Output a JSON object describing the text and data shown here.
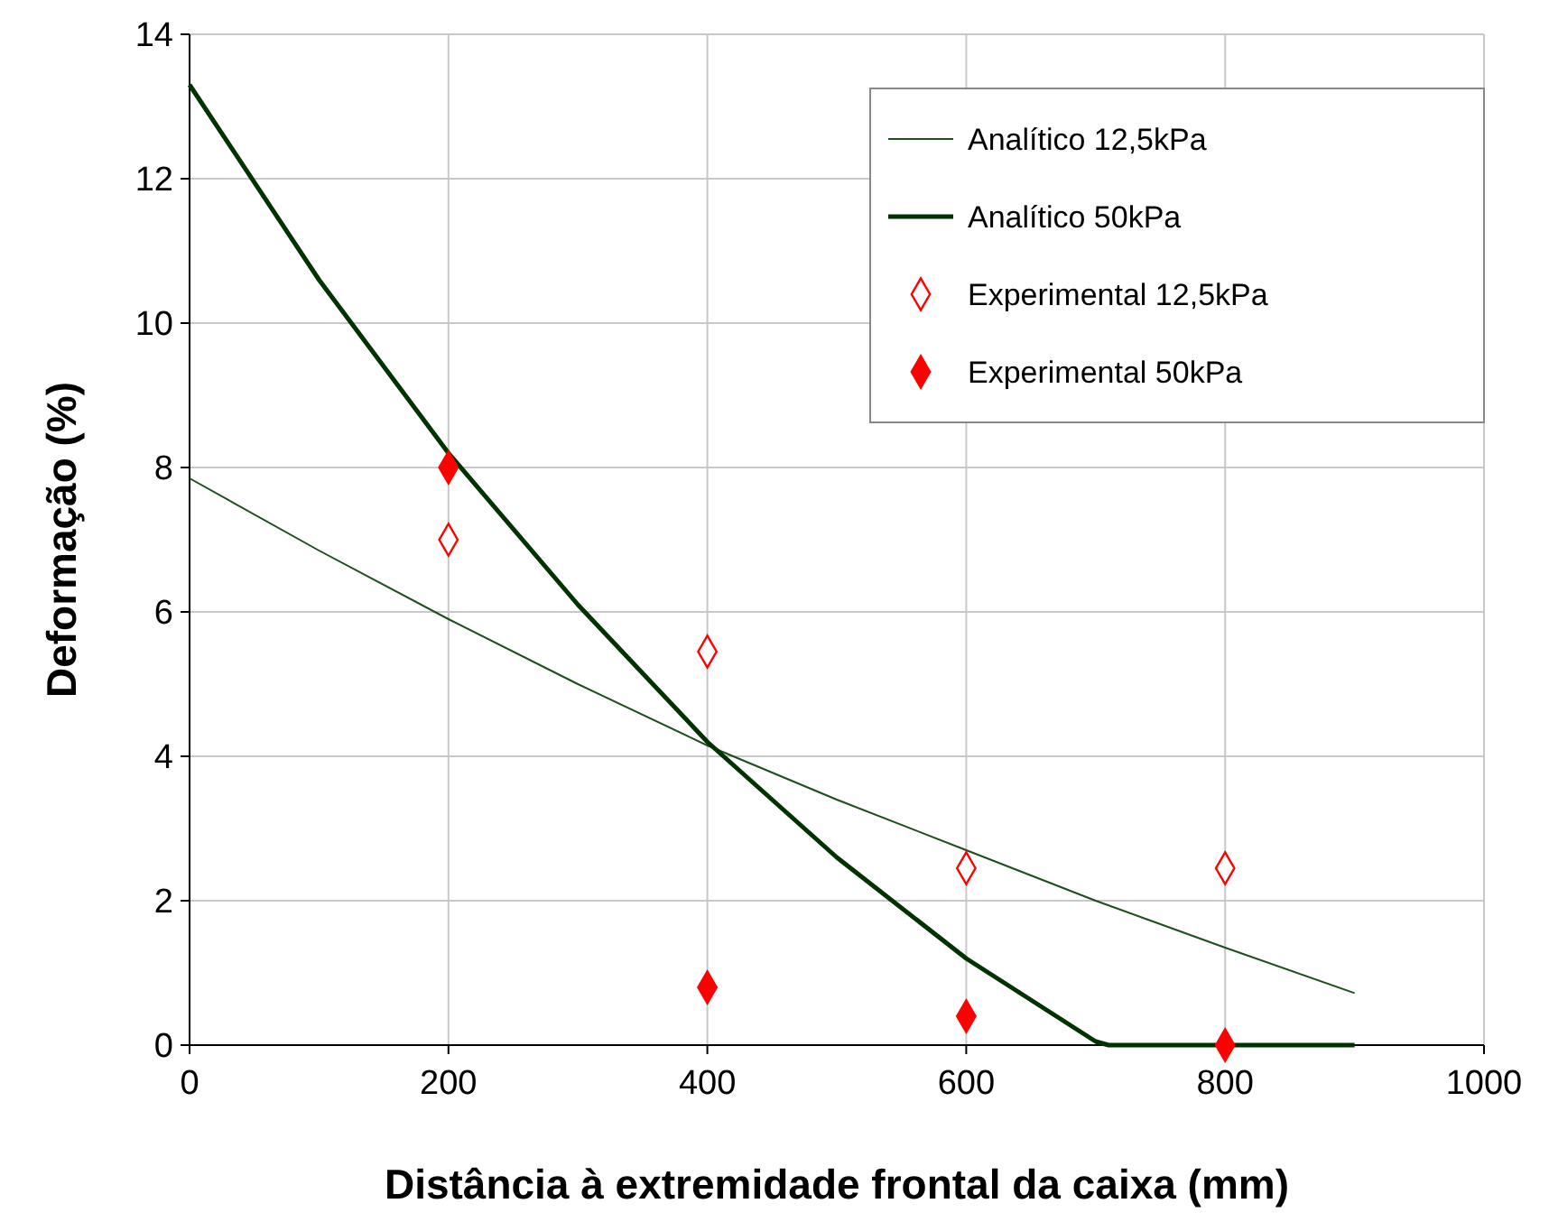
{
  "chart_data": {
    "type": "line",
    "xlabel": "Distância à extremidade frontal da caixa (mm)",
    "ylabel": "Deformação (%)",
    "xlim": [
      0,
      1000
    ],
    "xticks": [
      0,
      200,
      400,
      600,
      800,
      1000
    ],
    "ylim": [
      0,
      14
    ],
    "yticks": [
      0,
      2,
      4,
      6,
      8,
      10,
      12,
      14
    ],
    "grid": true,
    "legend": "top right",
    "series": [
      {
        "name": "Analítico 12,5kPa",
        "color": "#1e4d1e",
        "x": [
          0,
          100,
          200,
          300,
          400,
          500,
          600,
          700,
          800,
          900
        ],
        "values": [
          7.85,
          6.85,
          5.9,
          5.0,
          4.15,
          3.4,
          2.7,
          2.0,
          1.35,
          0.72
        ]
      },
      {
        "name": "Analítico 50kPa",
        "color": "#003300",
        "x": [
          0,
          100,
          200,
          300,
          400,
          500,
          600,
          700,
          710,
          800,
          900
        ],
        "values": [
          13.3,
          10.6,
          8.2,
          6.1,
          4.2,
          2.6,
          1.2,
          0.05,
          0,
          0,
          0
        ]
      },
      {
        "name": "Experimental 12,5kPa",
        "type": "scatter",
        "marker": "diamond",
        "color": "#ff0000",
        "x": [
          200,
          400,
          600,
          800
        ],
        "values": [
          7.0,
          5.45,
          2.45,
          2.45
        ]
      },
      {
        "name": "Experimental 50kPa",
        "type": "scatter",
        "marker": "diamond",
        "color": "#ff0000",
        "x": [
          200,
          400,
          600,
          800
        ],
        "values": [
          8.0,
          0.8,
          0.4,
          0.0
        ]
      }
    ]
  }
}
